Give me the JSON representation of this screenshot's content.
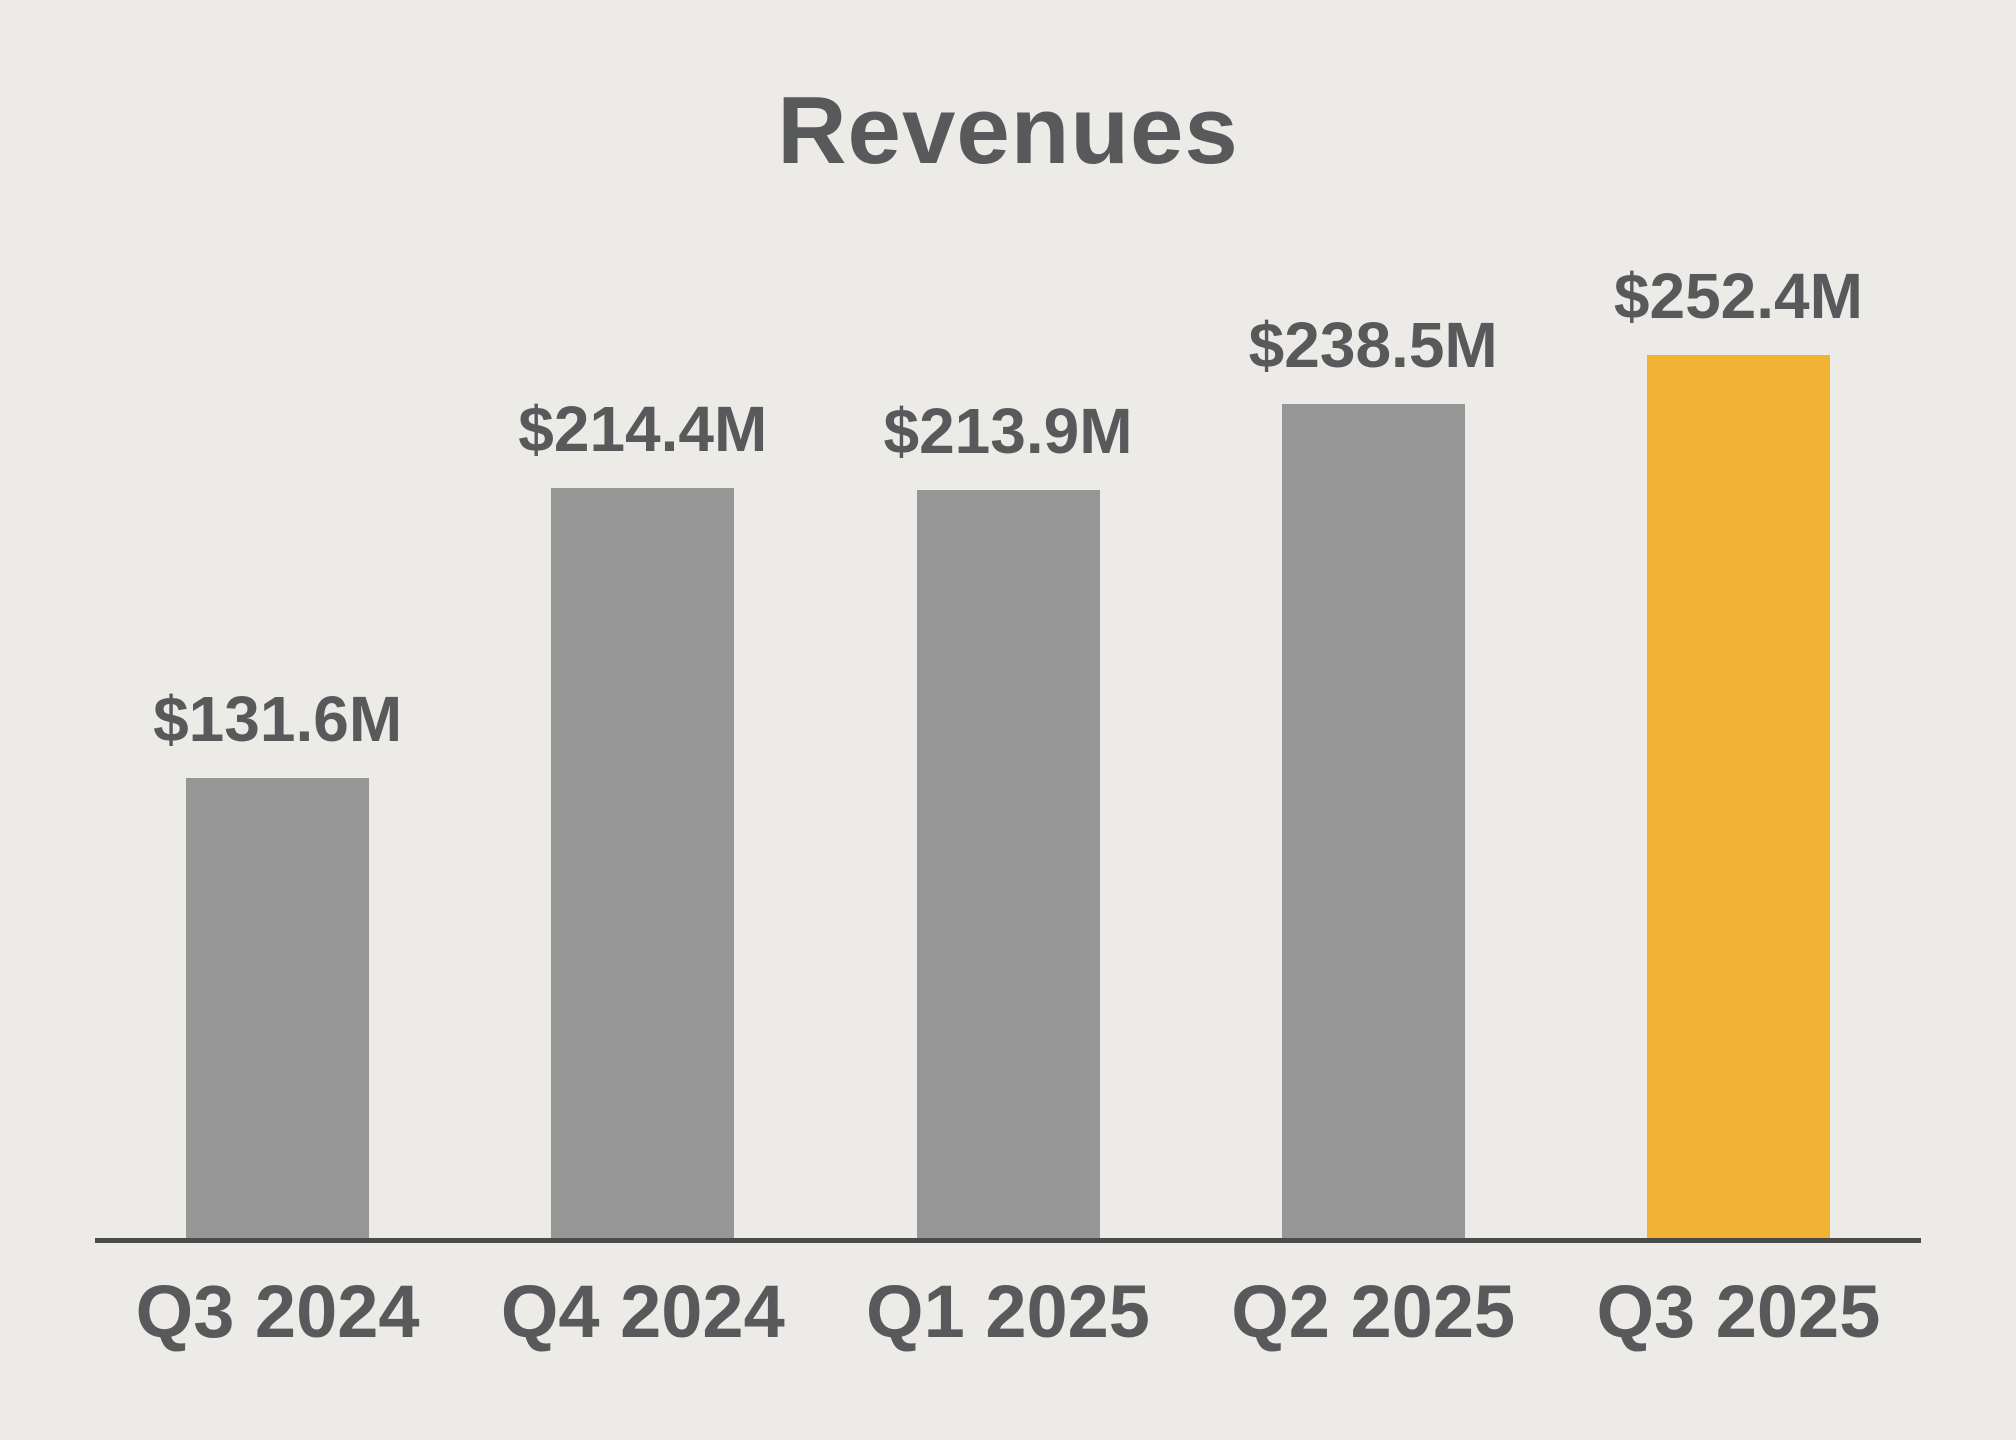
{
  "chart_data": {
    "type": "bar",
    "title": "Revenues",
    "categories": [
      "Q3 2024",
      "Q4 2024",
      "Q1 2025",
      "Q2 2025",
      "Q3 2025"
    ],
    "values": [
      131.6,
      214.4,
      213.9,
      238.5,
      252.4
    ],
    "value_labels": [
      "$131.6M",
      "$214.4M",
      "$213.9M",
      "$238.5M",
      "$252.4M"
    ],
    "xlabel": "",
    "ylabel": "",
    "ylim": [
      0,
      260
    ],
    "grid": false,
    "legend_position": "none",
    "highlight_index": 4,
    "bar_colors": [
      "#969696",
      "#969696",
      "#969696",
      "#969696",
      "#F2B233"
    ],
    "colors": {
      "bar_default": "#969696",
      "bar_highlight": "#F2B233",
      "text": "#58595B",
      "axis": "#4B4B4B",
      "background": "#EDEBE7"
    }
  }
}
